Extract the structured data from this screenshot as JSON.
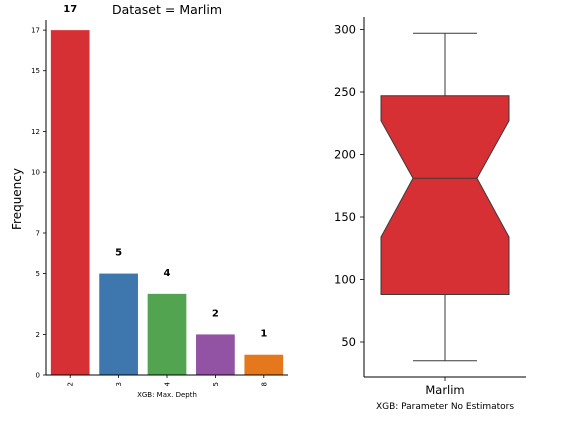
{
  "chart_data": [
    {
      "type": "bar",
      "title": "Dataset = Marlim",
      "xlabel": "XGB: Max. Depth",
      "ylabel": "Frequency",
      "categories": [
        "2",
        "3",
        "4",
        "5",
        "8"
      ],
      "values": [
        17,
        5,
        4,
        2,
        1
      ],
      "data_labels": [
        "17",
        "5",
        "4",
        "2",
        "1"
      ],
      "bar_colors": [
        "#d62f34",
        "#3e77ad",
        "#52a450",
        "#9353a4",
        "#e5771c"
      ],
      "yticks": [
        "0",
        "2",
        "5",
        "7",
        "10",
        "12",
        "15",
        "17"
      ],
      "ylim": [
        0,
        17.5
      ],
      "grid": false
    },
    {
      "type": "box",
      "title": "",
      "xlabel": "XGB: Parameter No Estimators",
      "categories": [
        "Marlim"
      ],
      "box": {
        "whisker_low": 35,
        "q1": 88,
        "notch_low": 134,
        "median": 181,
        "notch_high": 227,
        "q3": 247,
        "whisker_high": 297
      },
      "notched": true,
      "box_color": "#d62f34",
      "yticks": [
        "50",
        "100",
        "150",
        "200",
        "250",
        "300"
      ],
      "ylim": [
        22,
        310
      ],
      "grid": false
    }
  ]
}
